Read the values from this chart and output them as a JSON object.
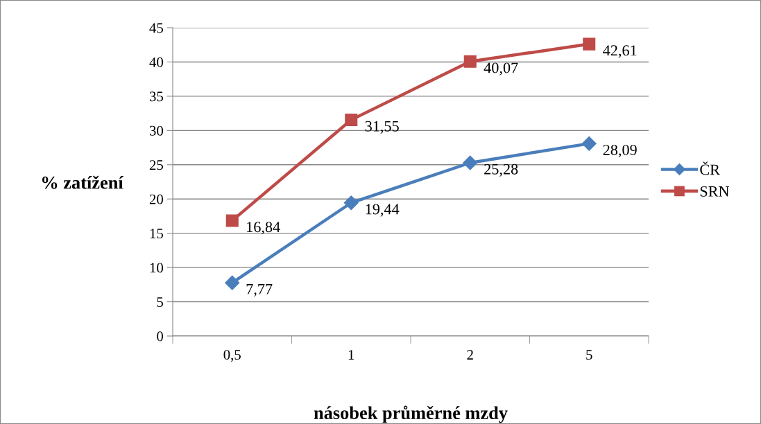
{
  "chart_data": {
    "type": "line",
    "xlabel": "násobek průměrné mzdy",
    "ylabel": "% zatížení",
    "categories": [
      "0,5",
      "1",
      "2",
      "5"
    ],
    "series": [
      {
        "name": "ČR",
        "color": "#4a7ebb",
        "marker": "diamond",
        "values": [
          7.77,
          19.44,
          25.28,
          28.09
        ],
        "value_labels": [
          "7,77",
          "19,44",
          "25,28",
          "28,09"
        ]
      },
      {
        "name": "SRN",
        "color": "#be4b48",
        "marker": "square",
        "values": [
          16.84,
          31.55,
          40.07,
          42.61
        ],
        "value_labels": [
          "16,84",
          "31,55",
          "40,07",
          "42,61"
        ]
      }
    ],
    "ylim": [
      0,
      45
    ],
    "yticks": [
      0,
      5,
      10,
      15,
      20,
      25,
      30,
      35,
      40,
      45
    ],
    "grid": "y",
    "legend": "right",
    "line_style": "solid"
  }
}
